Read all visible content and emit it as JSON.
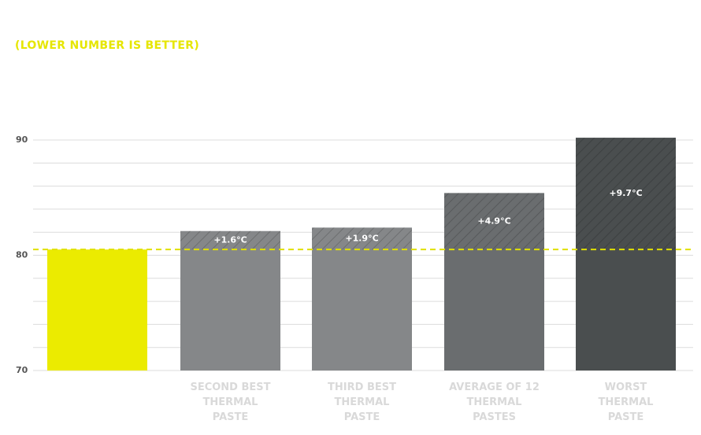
{
  "chart_data": {
    "type": "bar",
    "subtitle": "(LOWER NUMBER IS BETTER)",
    "categories": [
      null,
      "SECOND BEST THERMAL PASTE",
      "THIRD BEST THERMAL PASTE",
      "AVERAGE OF 12 THERMAL PASTES",
      "WORST THERMAL PASTE"
    ],
    "values": [
      80.5,
      82.1,
      82.4,
      85.4,
      90.2
    ],
    "colors": [
      "#ebeb00",
      "#858789",
      "#858789",
      "#6a6d6f",
      "#4a4e4f"
    ],
    "reference_line": 80.5,
    "reference_color": "#e0e000",
    "deltas": [
      null,
      1.6,
      1.9,
      4.9,
      9.7
    ],
    "delta_labels": [
      null,
      "+1.6°C",
      "+1.9°C",
      "+4.9°C",
      "+9.7°C"
    ],
    "ylim": [
      70,
      90.8
    ],
    "yticks": [
      70,
      80,
      90
    ],
    "minor_yticks": [
      72,
      74,
      76,
      78,
      82,
      84,
      86,
      88
    ],
    "grid": true
  }
}
